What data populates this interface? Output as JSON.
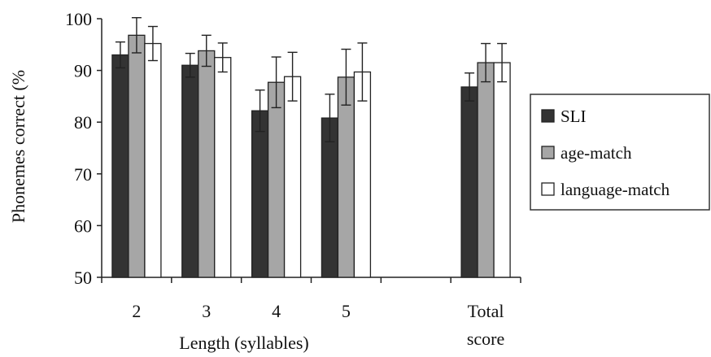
{
  "chart_data": {
    "type": "bar",
    "categories": [
      "2",
      "3",
      "4",
      "5",
      "",
      "Total score"
    ],
    "category_lines": [
      [
        "2"
      ],
      [
        "3"
      ],
      [
        "4"
      ],
      [
        "5"
      ],
      [
        ""
      ],
      [
        "Total",
        "score"
      ]
    ],
    "series": [
      {
        "name": "SLI",
        "color": "#333333",
        "values": [
          93.0,
          91.0,
          82.2,
          80.8,
          null,
          86.8
        ],
        "errors": [
          2.5,
          2.3,
          4.0,
          4.6,
          null,
          2.7
        ]
      },
      {
        "name": "age-match",
        "color": "#a6a6a6",
        "values": [
          96.8,
          93.8,
          87.7,
          88.7,
          null,
          91.5
        ],
        "errors": [
          3.4,
          3.0,
          4.9,
          5.4,
          null,
          3.7
        ]
      },
      {
        "name": "language-match",
        "color": "#ffffff",
        "values": [
          95.2,
          92.5,
          88.8,
          89.7,
          null,
          91.5
        ],
        "errors": [
          3.3,
          2.8,
          4.7,
          5.6,
          null,
          3.7
        ]
      }
    ],
    "ylabel": "Phonemes correct (%",
    "xlabel": "Length (syllables)",
    "ylim": [
      50,
      100
    ],
    "yticks": [
      50,
      60,
      70,
      80,
      90,
      100
    ],
    "grid": false,
    "legend_position": "right"
  }
}
